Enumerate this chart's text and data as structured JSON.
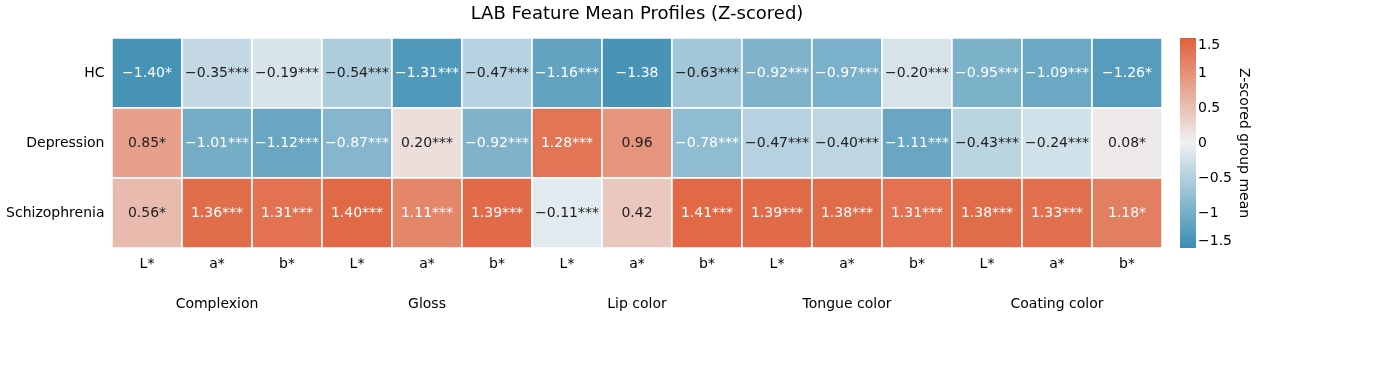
{
  "chart_data": {
    "type": "heatmap",
    "title": "LAB Feature Mean Profiles (Z-scored)",
    "categories": [
      "L*",
      "a*",
      "b*",
      "L*",
      "a*",
      "b*",
      "L*",
      "a*",
      "b*",
      "L*",
      "a*",
      "b*",
      "L*",
      "a*",
      "b*"
    ],
    "y_categories": [
      "HC",
      "Depression",
      "Schizophrenia"
    ],
    "cells": [
      [
        -1.4,
        -0.35,
        -0.19,
        -0.54,
        -1.31,
        -0.47,
        -1.16,
        -1.38,
        -0.63,
        -0.92,
        -0.97,
        -0.2,
        -0.95,
        -1.09,
        -1.26
      ],
      [
        0.85,
        -1.01,
        -1.12,
        -0.87,
        0.2,
        -0.92,
        1.28,
        0.96,
        -0.78,
        -0.47,
        -0.4,
        -1.11,
        -0.43,
        -0.24,
        0.08
      ],
      [
        0.56,
        1.36,
        1.31,
        1.4,
        1.11,
        1.39,
        -0.11,
        0.42,
        1.41,
        1.39,
        1.38,
        1.31,
        1.38,
        1.33,
        1.18
      ]
    ],
    "cell_labels": [
      [
        "−1.40*",
        "−0.35***",
        "−0.19***",
        "−0.54***",
        "−1.31***",
        "−0.47***",
        "−1.16***",
        "−1.38",
        "−0.63***",
        "−0.92***",
        "−0.97***",
        "−0.20***",
        "−0.95***",
        "−1.09***",
        "−1.26*"
      ],
      [
        "0.85*",
        "−1.01***",
        "−1.12***",
        "−0.87***",
        "0.20***",
        "−0.92***",
        "1.28***",
        "0.96",
        "−0.78***",
        "−0.47***",
        "−0.40***",
        "−1.11***",
        "−0.43***",
        "−0.24***",
        "0.08*"
      ],
      [
        "0.56*",
        "1.36***",
        "1.31***",
        "1.40***",
        "1.11***",
        "1.39***",
        "−0.11***",
        "0.42",
        "1.41***",
        "1.39***",
        "1.38***",
        "1.31***",
        "1.38***",
        "1.33***",
        "1.18*"
      ]
    ],
    "annotations": [
      "Complexion",
      "Gloss",
      "Lip color",
      "Tongue color",
      "Coating color"
    ],
    "clabel": "Z-scored group mean",
    "clim": [
      -1.5,
      1.5
    ],
    "cticks": [
      {
        "value": 1.5,
        "label": "1.5"
      },
      {
        "value": 1,
        "label": "1"
      },
      {
        "value": 0.5,
        "label": "0.5"
      },
      {
        "value": 0,
        "label": "0"
      },
      {
        "value": -0.5,
        "label": "−0.5"
      },
      {
        "value": -1,
        "label": "−1"
      },
      {
        "value": -1.5,
        "label": "−1.5"
      }
    ]
  }
}
